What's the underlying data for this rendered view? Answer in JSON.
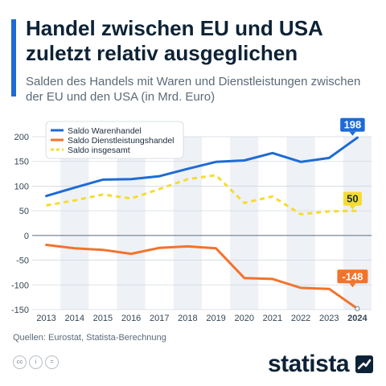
{
  "header": {
    "title": "Handel zwischen EU und USA zuletzt relativ ausgeglichen",
    "subtitle": "Salden des Handels mit Waren und Dienstleistungen zwischen der EU und den USA (in Mrd. Euro)"
  },
  "chart_data": {
    "type": "line",
    "title": "Handel zwischen EU und USA zuletzt relativ ausgeglichen",
    "subtitle": "Salden des Handels mit Waren und Dienstleistungen zwischen der EU und den USA (in Mrd. Euro)",
    "xlabel": "",
    "ylabel": "",
    "categories": [
      "2013",
      "2014",
      "2015",
      "2016",
      "2017",
      "2018",
      "2019",
      "2020",
      "2021",
      "2022",
      "2023",
      "2024"
    ],
    "ylim": [
      -150,
      200
    ],
    "yticks": [
      -150,
      -100,
      -50,
      0,
      50,
      100,
      150,
      200
    ],
    "ytick_labels": [
      "-150",
      "-100",
      "-50",
      "0",
      "50",
      "100",
      "150",
      "200"
    ],
    "grid": true,
    "legend": "top-left",
    "series": [
      {
        "name": "Saldo Warenhandel",
        "color": "#1e6bd6",
        "style": "solid",
        "values": [
          80,
          97,
          113,
          114,
          120,
          135,
          149,
          152,
          167,
          149,
          157,
          198
        ],
        "end_label": "198"
      },
      {
        "name": "Saldo Dienstleistungshandel",
        "color": "#f2732b",
        "style": "solid",
        "values": [
          -19,
          -26,
          -29,
          -37,
          -25,
          -22,
          -26,
          -86,
          -88,
          -106,
          -108,
          -148
        ],
        "end_label": "-148"
      },
      {
        "name": "Saldo insgesamt",
        "color": "#f5dc2e",
        "style": "dashed",
        "values": [
          61,
          71,
          83,
          75,
          94,
          114,
          122,
          66,
          79,
          43,
          49,
          50
        ],
        "end_label": "50"
      }
    ]
  },
  "footer": {
    "source": "Quellen: Eurostat, Statista-Berechnung",
    "brand": "statista",
    "cc_labels": [
      "cc",
      "i",
      "="
    ]
  }
}
